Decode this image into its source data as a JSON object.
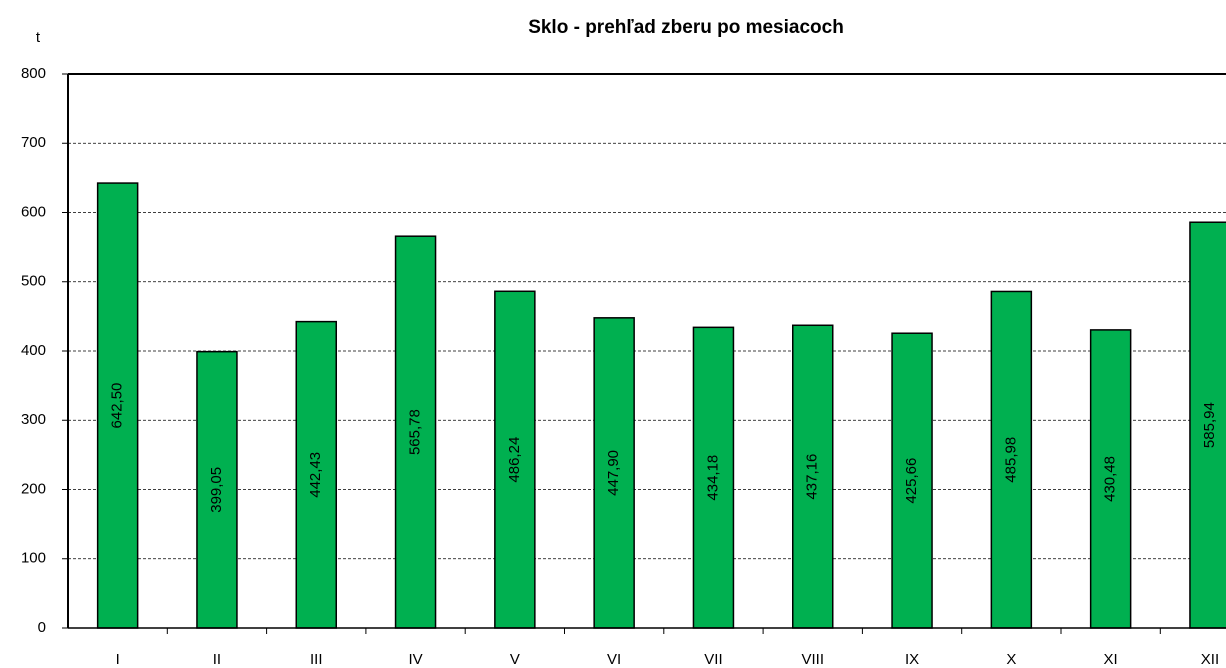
{
  "chart_data": {
    "type": "bar",
    "title": "Sklo - prehľad zberu po mesiacoch",
    "y_label": "t",
    "categories": [
      "I",
      "II",
      "III",
      "IV",
      "V",
      "VI",
      "VII",
      "VIII",
      "IX",
      "X",
      "XI",
      "XII"
    ],
    "values": [
      642.5,
      399.05,
      442.43,
      565.78,
      486.24,
      447.9,
      434.18,
      437.16,
      425.66,
      485.98,
      430.48,
      585.94
    ],
    "value_labels": [
      "642,50",
      "399,05",
      "442,43",
      "565,78",
      "486,24",
      "447,90",
      "434,18",
      "437,16",
      "425,66",
      "485,98",
      "430,48",
      "585,94"
    ],
    "color": "#00b050",
    "ylim": [
      0,
      800
    ],
    "yticks": [
      0,
      100,
      200,
      300,
      400,
      500,
      600,
      700,
      800
    ],
    "grid": true
  }
}
